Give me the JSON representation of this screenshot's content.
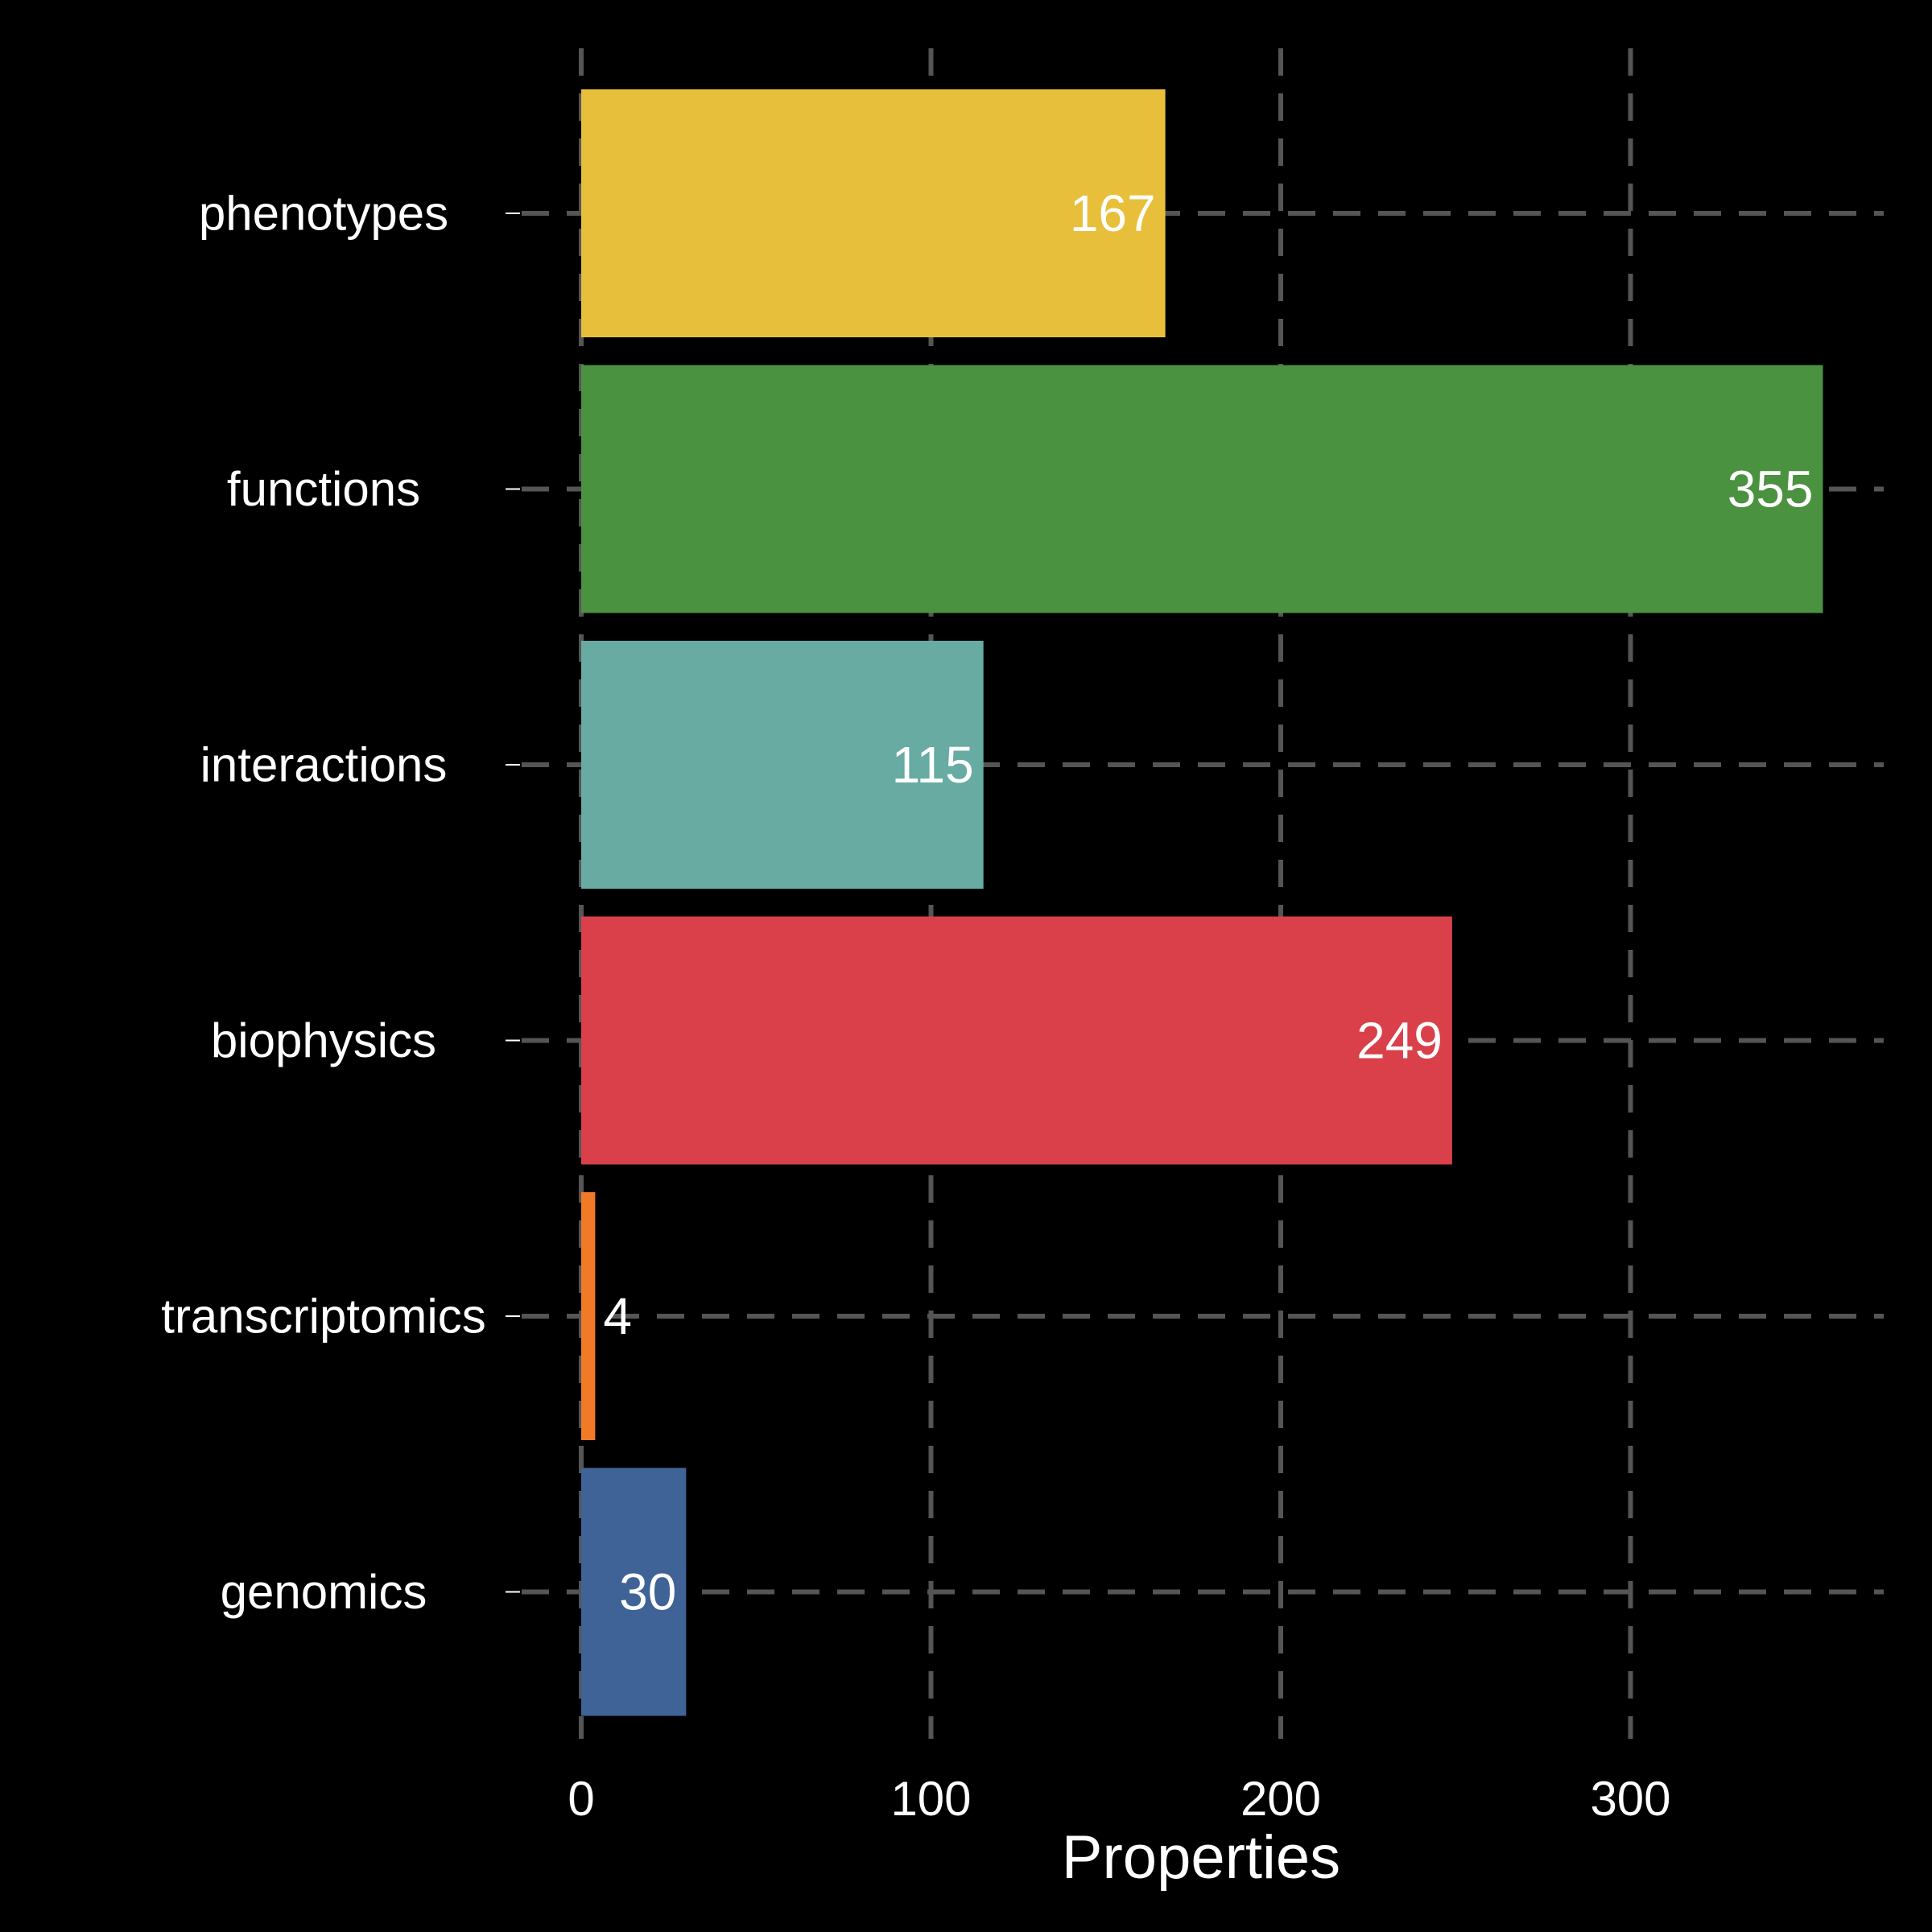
{
  "chart_data": {
    "type": "bar",
    "orientation": "horizontal",
    "categories": [
      "phenotypes",
      "functions",
      "interactions",
      "biophysics",
      "transcriptomics",
      "genomics"
    ],
    "values": [
      167,
      355,
      115,
      249,
      4,
      30
    ],
    "colors": [
      "#E8BF3B",
      "#4A923F",
      "#67ABA3",
      "#D94049",
      "#F07A28",
      "#3F6396"
    ],
    "data_labels": [
      "167",
      "355",
      "115",
      "249",
      "4",
      "30"
    ],
    "xlabel": "Properties",
    "ylabel": "",
    "xlim": [
      0,
      373
    ],
    "xticks": [
      0,
      100,
      200,
      300
    ],
    "xtick_labels": [
      "0",
      "100",
      "200",
      "300"
    ],
    "grid": true,
    "grid_style": "dashed",
    "background": "#000000",
    "legend": "none"
  }
}
